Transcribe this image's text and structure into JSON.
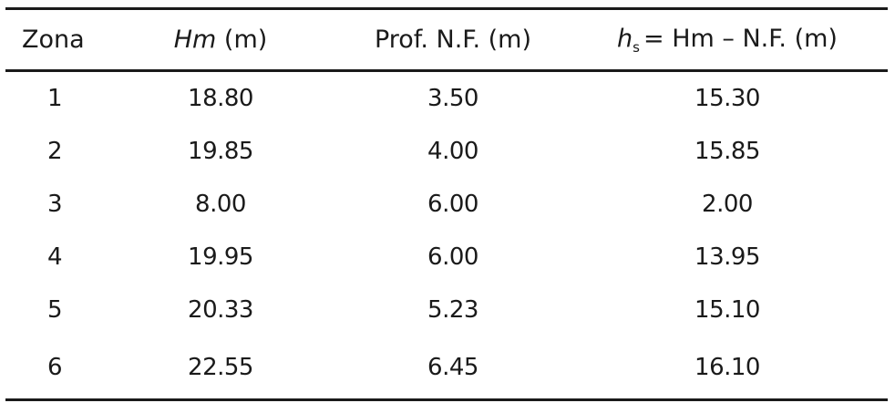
{
  "table": {
    "headers": {
      "zona": "Zona",
      "hm_var": "Hm",
      "hm_unit": "(m)",
      "prof": "Prof. N.F. (m)",
      "hs_var": "h",
      "hs_sub": "s",
      "hs_rest": "= Hm – N.F. (m)"
    },
    "rows": [
      {
        "zona": "1",
        "hm": "18.80",
        "prof": "3.50",
        "hs": "15.30"
      },
      {
        "zona": "2",
        "hm": "19.85",
        "prof": "4.00",
        "hs": "15.85"
      },
      {
        "zona": "3",
        "hm": "8.00",
        "prof": "6.00",
        "hs": "2.00"
      },
      {
        "zona": "4",
        "hm": "19.95",
        "prof": "6.00",
        "hs": "13.95"
      },
      {
        "zona": "5",
        "hm": "20.33",
        "prof": "5.23",
        "hs": "15.10"
      },
      {
        "zona": "6",
        "hm": "22.55",
        "prof": "6.45",
        "hs": "16.10"
      }
    ]
  }
}
